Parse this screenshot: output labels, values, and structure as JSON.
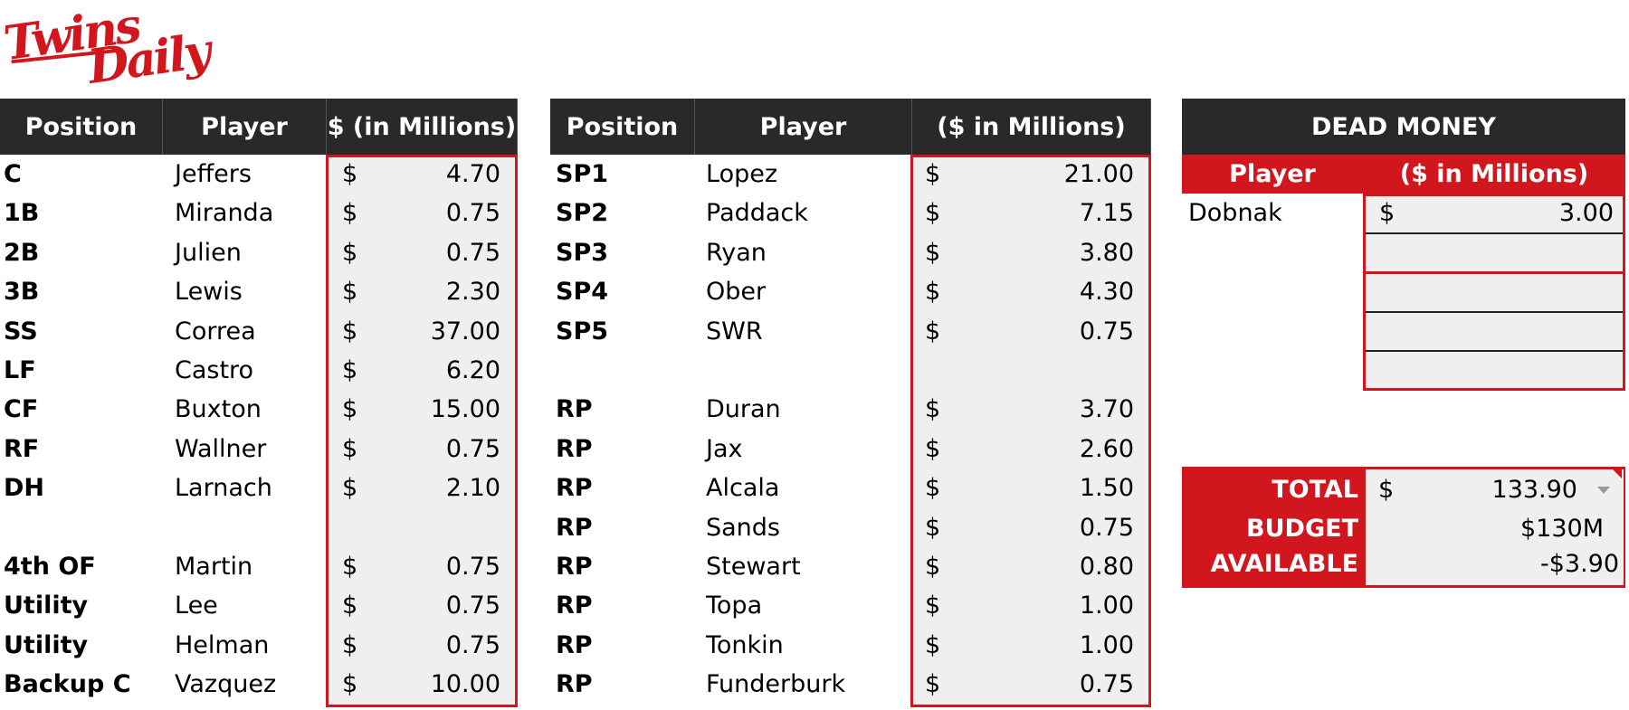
{
  "logo": {
    "line1": "Twins",
    "line2": "Daily"
  },
  "table1": {
    "headers": [
      "Position",
      "Player",
      "$ (in Millions)"
    ],
    "rows": [
      {
        "pos": "C",
        "player": "Jeffers",
        "dollar": "$",
        "amount": "4.70"
      },
      {
        "pos": "1B",
        "player": "Miranda",
        "dollar": "$",
        "amount": "0.75"
      },
      {
        "pos": "2B",
        "player": "Julien",
        "dollar": "$",
        "amount": "0.75"
      },
      {
        "pos": "3B",
        "player": "Lewis",
        "dollar": "$",
        "amount": "2.30"
      },
      {
        "pos": "SS",
        "player": "Correa",
        "dollar": "$",
        "amount": "37.00"
      },
      {
        "pos": "LF",
        "player": "Castro",
        "dollar": "$",
        "amount": "6.20"
      },
      {
        "pos": "CF",
        "player": "Buxton",
        "dollar": "$",
        "amount": "15.00"
      },
      {
        "pos": "RF",
        "player": "Wallner",
        "dollar": "$",
        "amount": "0.75"
      },
      {
        "pos": "DH",
        "player": "Larnach",
        "dollar": "$",
        "amount": "2.10"
      },
      {
        "pos": "4th OF",
        "player": "Martin",
        "dollar": "$",
        "amount": "0.75"
      },
      {
        "pos": "Utility",
        "player": "Lee",
        "dollar": "$",
        "amount": "0.75"
      },
      {
        "pos": "Utility",
        "player": "Helman",
        "dollar": "$",
        "amount": "0.75"
      },
      {
        "pos": "Backup C",
        "player": "Vazquez",
        "dollar": "$",
        "amount": "10.00"
      }
    ]
  },
  "table2": {
    "headers": [
      "Position",
      "Player",
      "($ in Millions)"
    ],
    "rows": [
      {
        "pos": "SP1",
        "player": "Lopez",
        "dollar": "$",
        "amount": "21.00"
      },
      {
        "pos": "SP2",
        "player": "Paddack",
        "dollar": "$",
        "amount": "7.15"
      },
      {
        "pos": "SP3",
        "player": "Ryan",
        "dollar": "$",
        "amount": "3.80"
      },
      {
        "pos": "SP4",
        "player": "Ober",
        "dollar": "$",
        "amount": "4.30"
      },
      {
        "pos": "SP5",
        "player": "SWR",
        "dollar": "$",
        "amount": "0.75"
      },
      {
        "pos": "RP",
        "player": "Duran",
        "dollar": "$",
        "amount": "3.70"
      },
      {
        "pos": "RP",
        "player": "Jax",
        "dollar": "$",
        "amount": "2.60"
      },
      {
        "pos": "RP",
        "player": "Alcala",
        "dollar": "$",
        "amount": "1.50"
      },
      {
        "pos": "RP",
        "player": "Sands",
        "dollar": "$",
        "amount": "0.75"
      },
      {
        "pos": "RP",
        "player": "Stewart",
        "dollar": "$",
        "amount": "0.80"
      },
      {
        "pos": "RP",
        "player": "Topa",
        "dollar": "$",
        "amount": "1.00"
      },
      {
        "pos": "RP",
        "player": "Tonkin",
        "dollar": "$",
        "amount": "1.00"
      },
      {
        "pos": "RP",
        "player": "Funderburk",
        "dollar": "$",
        "amount": "0.75"
      }
    ]
  },
  "dead_money": {
    "title": "DEAD MONEY",
    "col_player": "Player",
    "col_amount": "($ in Millions)",
    "entries": [
      {
        "player": "Dobnak",
        "dollar": "$",
        "amount": "3.00"
      }
    ]
  },
  "totals": {
    "total_label": "TOTAL",
    "total_dollar": "$",
    "total_value": "133.90",
    "budget_label": "BUDGET",
    "budget_value": "$130M",
    "available_label": "AVAILABLE",
    "available_value": "-$3.90"
  },
  "colors": {
    "accent": "#d2161e",
    "header_bg": "#292929",
    "cell_bg": "#efefef"
  }
}
